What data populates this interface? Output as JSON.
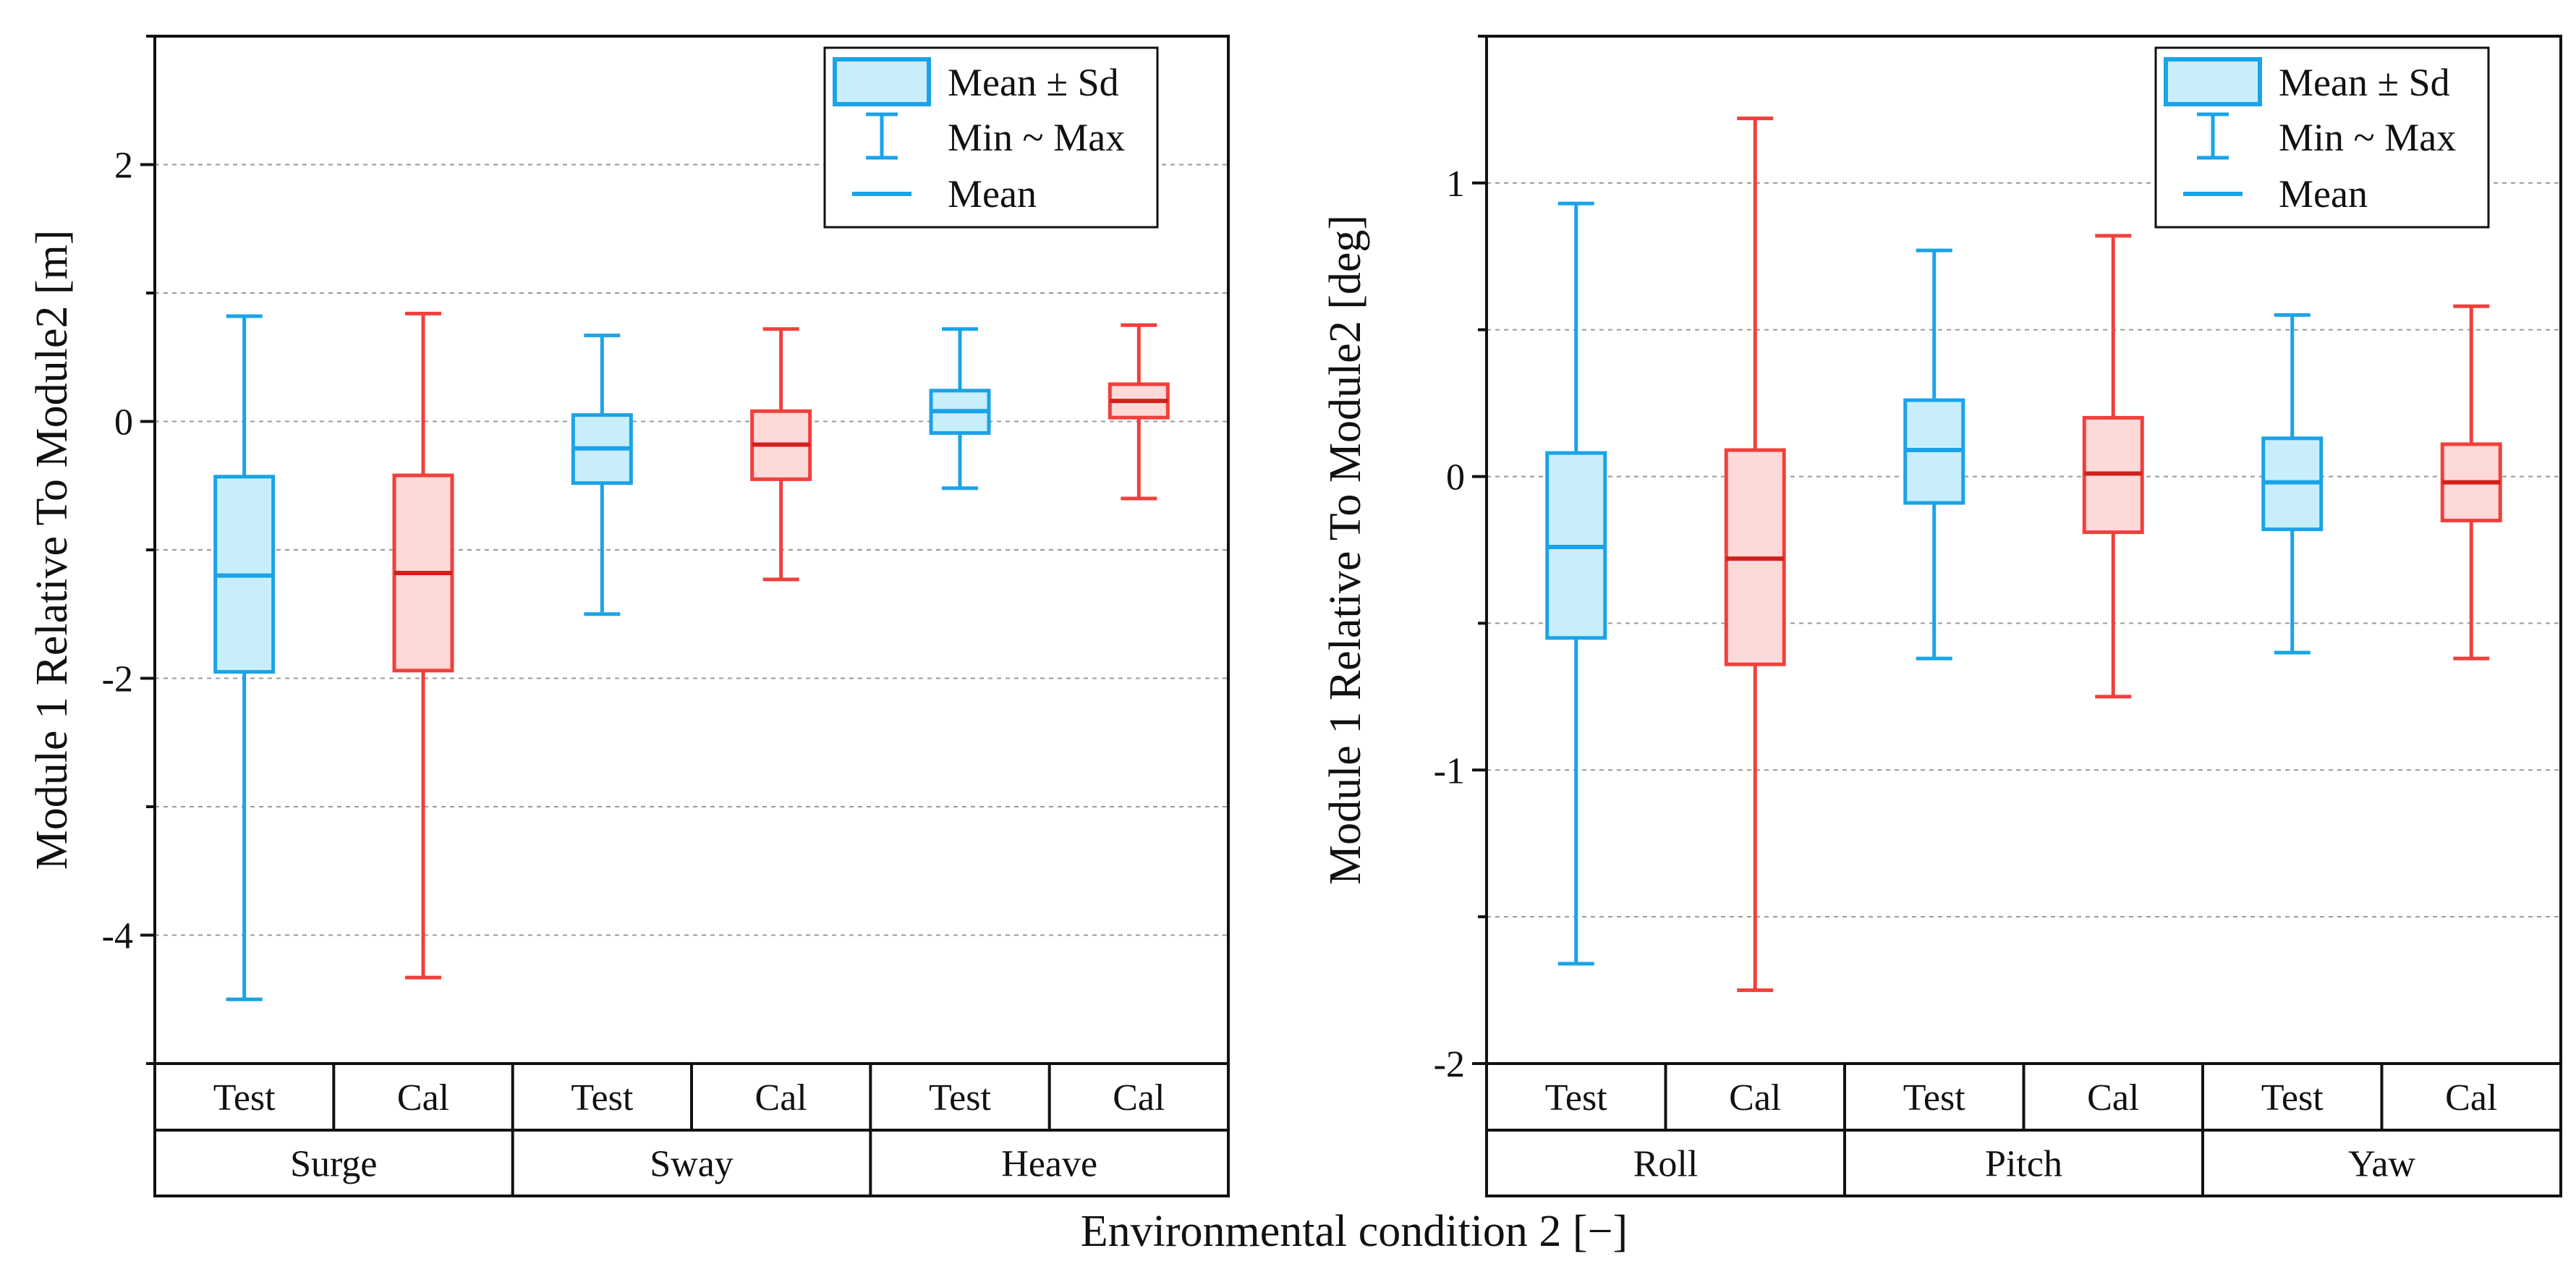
{
  "figure": {
    "xlabel": "Environmental condition 2 [−]"
  },
  "colors": {
    "test": "#1aa3e8",
    "test_fill": "#c9eefb",
    "cal": "#f0403c",
    "cal_fill": "#fdd9d8",
    "axis": "#111111",
    "grid": "#9a9a9a"
  },
  "legend": {
    "box_label": "Mean ± Sd",
    "whisker_label": "Min ~ Max",
    "mean_label": "Mean"
  },
  "chart_data": [
    {
      "type": "box",
      "ylabel": "Module 1 Relative To Module2  [m]",
      "ylim": [
        -5,
        3
      ],
      "yticks": [
        -4,
        -2,
        0,
        2
      ],
      "ytick_labels": [
        "-4",
        "-2",
        "0",
        "2"
      ],
      "grid_lines": [
        -4,
        -3,
        -2,
        -1,
        0,
        1,
        2
      ],
      "groups": [
        "Surge",
        "Sway",
        "Heave"
      ],
      "subcategories": [
        "Test",
        "Cal",
        "Test",
        "Cal",
        "Test",
        "Cal"
      ],
      "boxes": [
        {
          "group": "Surge",
          "series": "Test",
          "min": -4.5,
          "q_low": -1.95,
          "mean": -1.2,
          "q_high": -0.43,
          "max": 0.82
        },
        {
          "group": "Surge",
          "series": "Cal",
          "min": -4.33,
          "q_low": -1.94,
          "mean": -1.18,
          "q_high": -0.42,
          "max": 0.84
        },
        {
          "group": "Sway",
          "series": "Test",
          "min": -1.5,
          "q_low": -0.48,
          "mean": -0.21,
          "q_high": 0.05,
          "max": 0.67
        },
        {
          "group": "Sway",
          "series": "Cal",
          "min": -1.23,
          "q_low": -0.45,
          "mean": -0.18,
          "q_high": 0.08,
          "max": 0.72
        },
        {
          "group": "Heave",
          "series": "Test",
          "min": -0.52,
          "q_low": -0.09,
          "mean": 0.08,
          "q_high": 0.24,
          "max": 0.72
        },
        {
          "group": "Heave",
          "series": "Cal",
          "min": -0.6,
          "q_low": 0.03,
          "mean": 0.16,
          "q_high": 0.29,
          "max": 0.75
        }
      ]
    },
    {
      "type": "box",
      "ylabel": "Module 1 Relative To Module2  [deg]",
      "ylim": [
        -2,
        1.5
      ],
      "yticks": [
        -2,
        -1,
        0,
        1
      ],
      "ytick_labels": [
        "-2",
        "-1",
        "0",
        "1"
      ],
      "grid_lines": [
        -1.5,
        -1,
        -0.5,
        0,
        0.5,
        1
      ],
      "groups": [
        "Roll",
        "Pitch",
        "Yaw"
      ],
      "subcategories": [
        "Test",
        "Cal",
        "Test",
        "Cal",
        "Test",
        "Cal"
      ],
      "boxes": [
        {
          "group": "Roll",
          "series": "Test",
          "min": -1.66,
          "q_low": -0.55,
          "mean": -0.24,
          "q_high": 0.08,
          "max": 0.93
        },
        {
          "group": "Roll",
          "series": "Cal",
          "min": -1.75,
          "q_low": -0.64,
          "mean": -0.28,
          "q_high": 0.09,
          "max": 1.22
        },
        {
          "group": "Pitch",
          "series": "Test",
          "min": -0.62,
          "q_low": -0.09,
          "mean": 0.09,
          "q_high": 0.26,
          "max": 0.77
        },
        {
          "group": "Pitch",
          "series": "Cal",
          "min": -0.75,
          "q_low": -0.19,
          "mean": 0.01,
          "q_high": 0.2,
          "max": 0.82
        },
        {
          "group": "Yaw",
          "series": "Test",
          "min": -0.6,
          "q_low": -0.18,
          "mean": -0.02,
          "q_high": 0.13,
          "max": 0.55
        },
        {
          "group": "Yaw",
          "series": "Cal",
          "min": -0.62,
          "q_low": -0.15,
          "mean": -0.02,
          "q_high": 0.11,
          "max": 0.58
        }
      ]
    }
  ]
}
